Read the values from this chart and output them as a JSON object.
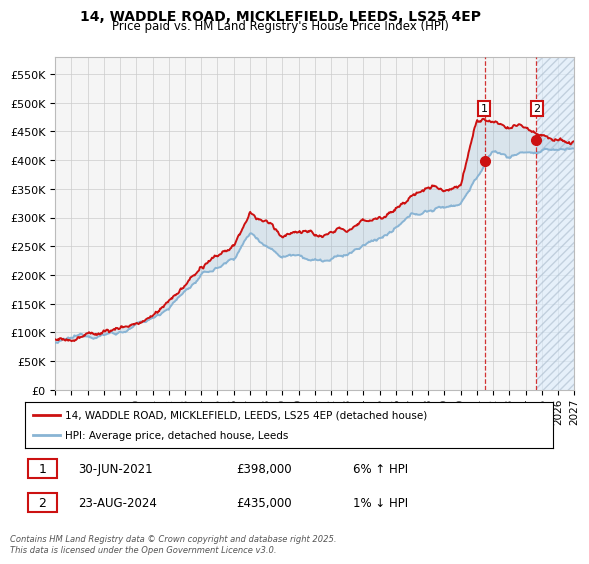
{
  "title": "14, WADDLE ROAD, MICKLEFIELD, LEEDS, LS25 4EP",
  "subtitle": "Price paid vs. HM Land Registry's House Price Index (HPI)",
  "ylabel_ticks": [
    "£0",
    "£50K",
    "£100K",
    "£150K",
    "£200K",
    "£250K",
    "£300K",
    "£350K",
    "£400K",
    "£450K",
    "£500K",
    "£550K"
  ],
  "ytick_vals": [
    0,
    50000,
    100000,
    150000,
    200000,
    250000,
    300000,
    350000,
    400000,
    450000,
    500000,
    550000
  ],
  "ylim": [
    0,
    580000
  ],
  "xlim_years": [
    1995.0,
    2027.0
  ],
  "xtick_years": [
    1995,
    1996,
    1997,
    1998,
    1999,
    2000,
    2001,
    2002,
    2003,
    2004,
    2005,
    2006,
    2007,
    2008,
    2009,
    2010,
    2011,
    2012,
    2013,
    2014,
    2015,
    2016,
    2017,
    2018,
    2019,
    2020,
    2021,
    2022,
    2023,
    2024,
    2025,
    2026,
    2027
  ],
  "hpi_color": "#89b4d4",
  "price_color": "#cc1111",
  "vline_color": "#cc1111",
  "vline1_x": 2021.5,
  "vline2_x": 2024.65,
  "point1_x": 2021.5,
  "point1_y": 398000,
  "point2_x": 2024.65,
  "point2_y": 435000,
  "future_fill_color": "#ddeeff",
  "legend_price": "14, WADDLE ROAD, MICKLEFIELD, LEEDS, LS25 4EP (detached house)",
  "legend_hpi": "HPI: Average price, detached house, Leeds",
  "note1_label": "1",
  "note1_date": "30-JUN-2021",
  "note1_price": "£398,000",
  "note1_hpi": "6% ↑ HPI",
  "note2_label": "2",
  "note2_date": "23-AUG-2024",
  "note2_price": "£435,000",
  "note2_hpi": "1% ↓ HPI",
  "copyright": "Contains HM Land Registry data © Crown copyright and database right 2025.\nThis data is licensed under the Open Government Licence v3.0.",
  "grid_color": "#cccccc",
  "plot_bg": "#f5f5f5"
}
